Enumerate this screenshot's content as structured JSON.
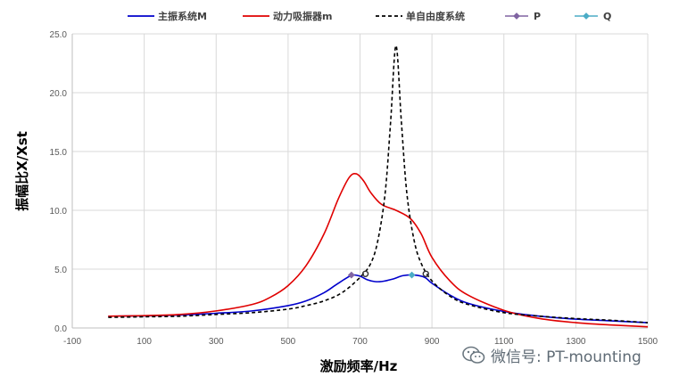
{
  "chart_data": {
    "type": "line",
    "xlabel": "激励频率/Hz",
    "ylabel": "振幅比X/Xst",
    "xlim": [
      -100,
      1500
    ],
    "ylim": [
      0,
      25
    ],
    "x_ticks": [
      "-100",
      "100",
      "300",
      "500",
      "700",
      "900",
      "1100",
      "1300",
      "1500"
    ],
    "y_ticks": [
      "0.0",
      "5.0",
      "10.0",
      "15.0",
      "20.0",
      "25.0"
    ],
    "grid": true,
    "legend_position": "top",
    "series": [
      {
        "name": "主振系统M",
        "color": "#0000cc",
        "style": "solid",
        "points": [
          [
            0,
            1.0
          ],
          [
            100,
            1.03
          ],
          [
            200,
            1.1
          ],
          [
            300,
            1.25
          ],
          [
            400,
            1.45
          ],
          [
            500,
            1.9
          ],
          [
            550,
            2.3
          ],
          [
            600,
            3.0
          ],
          [
            630,
            3.6
          ],
          [
            660,
            4.2
          ],
          [
            680,
            4.5
          ],
          [
            700,
            4.4
          ],
          [
            720,
            4.1
          ],
          [
            740,
            3.95
          ],
          [
            760,
            3.95
          ],
          [
            790,
            4.15
          ],
          [
            820,
            4.45
          ],
          [
            850,
            4.5
          ],
          [
            880,
            4.3
          ],
          [
            900,
            3.8
          ],
          [
            950,
            2.8
          ],
          [
            1000,
            2.1
          ],
          [
            1100,
            1.4
          ],
          [
            1200,
            1.0
          ],
          [
            1300,
            0.75
          ],
          [
            1400,
            0.6
          ],
          [
            1500,
            0.45
          ]
        ]
      },
      {
        "name": "动力吸振器m",
        "color": "#e00000",
        "style": "solid",
        "points": [
          [
            0,
            1.0
          ],
          [
            100,
            1.05
          ],
          [
            200,
            1.15
          ],
          [
            300,
            1.45
          ],
          [
            400,
            2.0
          ],
          [
            450,
            2.6
          ],
          [
            500,
            3.6
          ],
          [
            550,
            5.3
          ],
          [
            600,
            8.0
          ],
          [
            640,
            11.0
          ],
          [
            670,
            12.8
          ],
          [
            690,
            13.1
          ],
          [
            710,
            12.5
          ],
          [
            730,
            11.5
          ],
          [
            760,
            10.5
          ],
          [
            800,
            10.0
          ],
          [
            840,
            9.3
          ],
          [
            870,
            8.0
          ],
          [
            900,
            6.0
          ],
          [
            950,
            4.0
          ],
          [
            1000,
            2.8
          ],
          [
            1100,
            1.5
          ],
          [
            1200,
            0.8
          ],
          [
            1300,
            0.45
          ],
          [
            1400,
            0.25
          ],
          [
            1500,
            0.1
          ]
        ]
      },
      {
        "name": "单自由度系统",
        "color": "#000000",
        "style": "dashed",
        "points": [
          [
            0,
            0.9
          ],
          [
            100,
            0.95
          ],
          [
            200,
            1.0
          ],
          [
            300,
            1.15
          ],
          [
            400,
            1.3
          ],
          [
            500,
            1.6
          ],
          [
            550,
            1.9
          ],
          [
            600,
            2.3
          ],
          [
            650,
            3.0
          ],
          [
            700,
            4.3
          ],
          [
            730,
            5.5
          ],
          [
            750,
            7.5
          ],
          [
            770,
            11.5
          ],
          [
            785,
            17.5
          ],
          [
            800,
            24.0
          ],
          [
            815,
            17.5
          ],
          [
            830,
            11.5
          ],
          [
            850,
            7.5
          ],
          [
            870,
            5.5
          ],
          [
            900,
            4.0
          ],
          [
            950,
            2.7
          ],
          [
            1000,
            2.0
          ],
          [
            1100,
            1.3
          ],
          [
            1200,
            1.0
          ],
          [
            1300,
            0.8
          ],
          [
            1400,
            0.65
          ],
          [
            1500,
            0.45
          ]
        ]
      },
      {
        "name": "P",
        "color": "#8064a2",
        "style": "marker",
        "points": [
          [
            676,
            4.5
          ]
        ]
      },
      {
        "name": "Q",
        "color": "#4bacc6",
        "style": "marker",
        "points": [
          [
            844,
            4.5
          ]
        ]
      }
    ],
    "annotations": [
      [
        715,
        4.6
      ],
      [
        883,
        4.6
      ]
    ]
  },
  "watermark": {
    "text": "微信号: PT-mounting"
  }
}
